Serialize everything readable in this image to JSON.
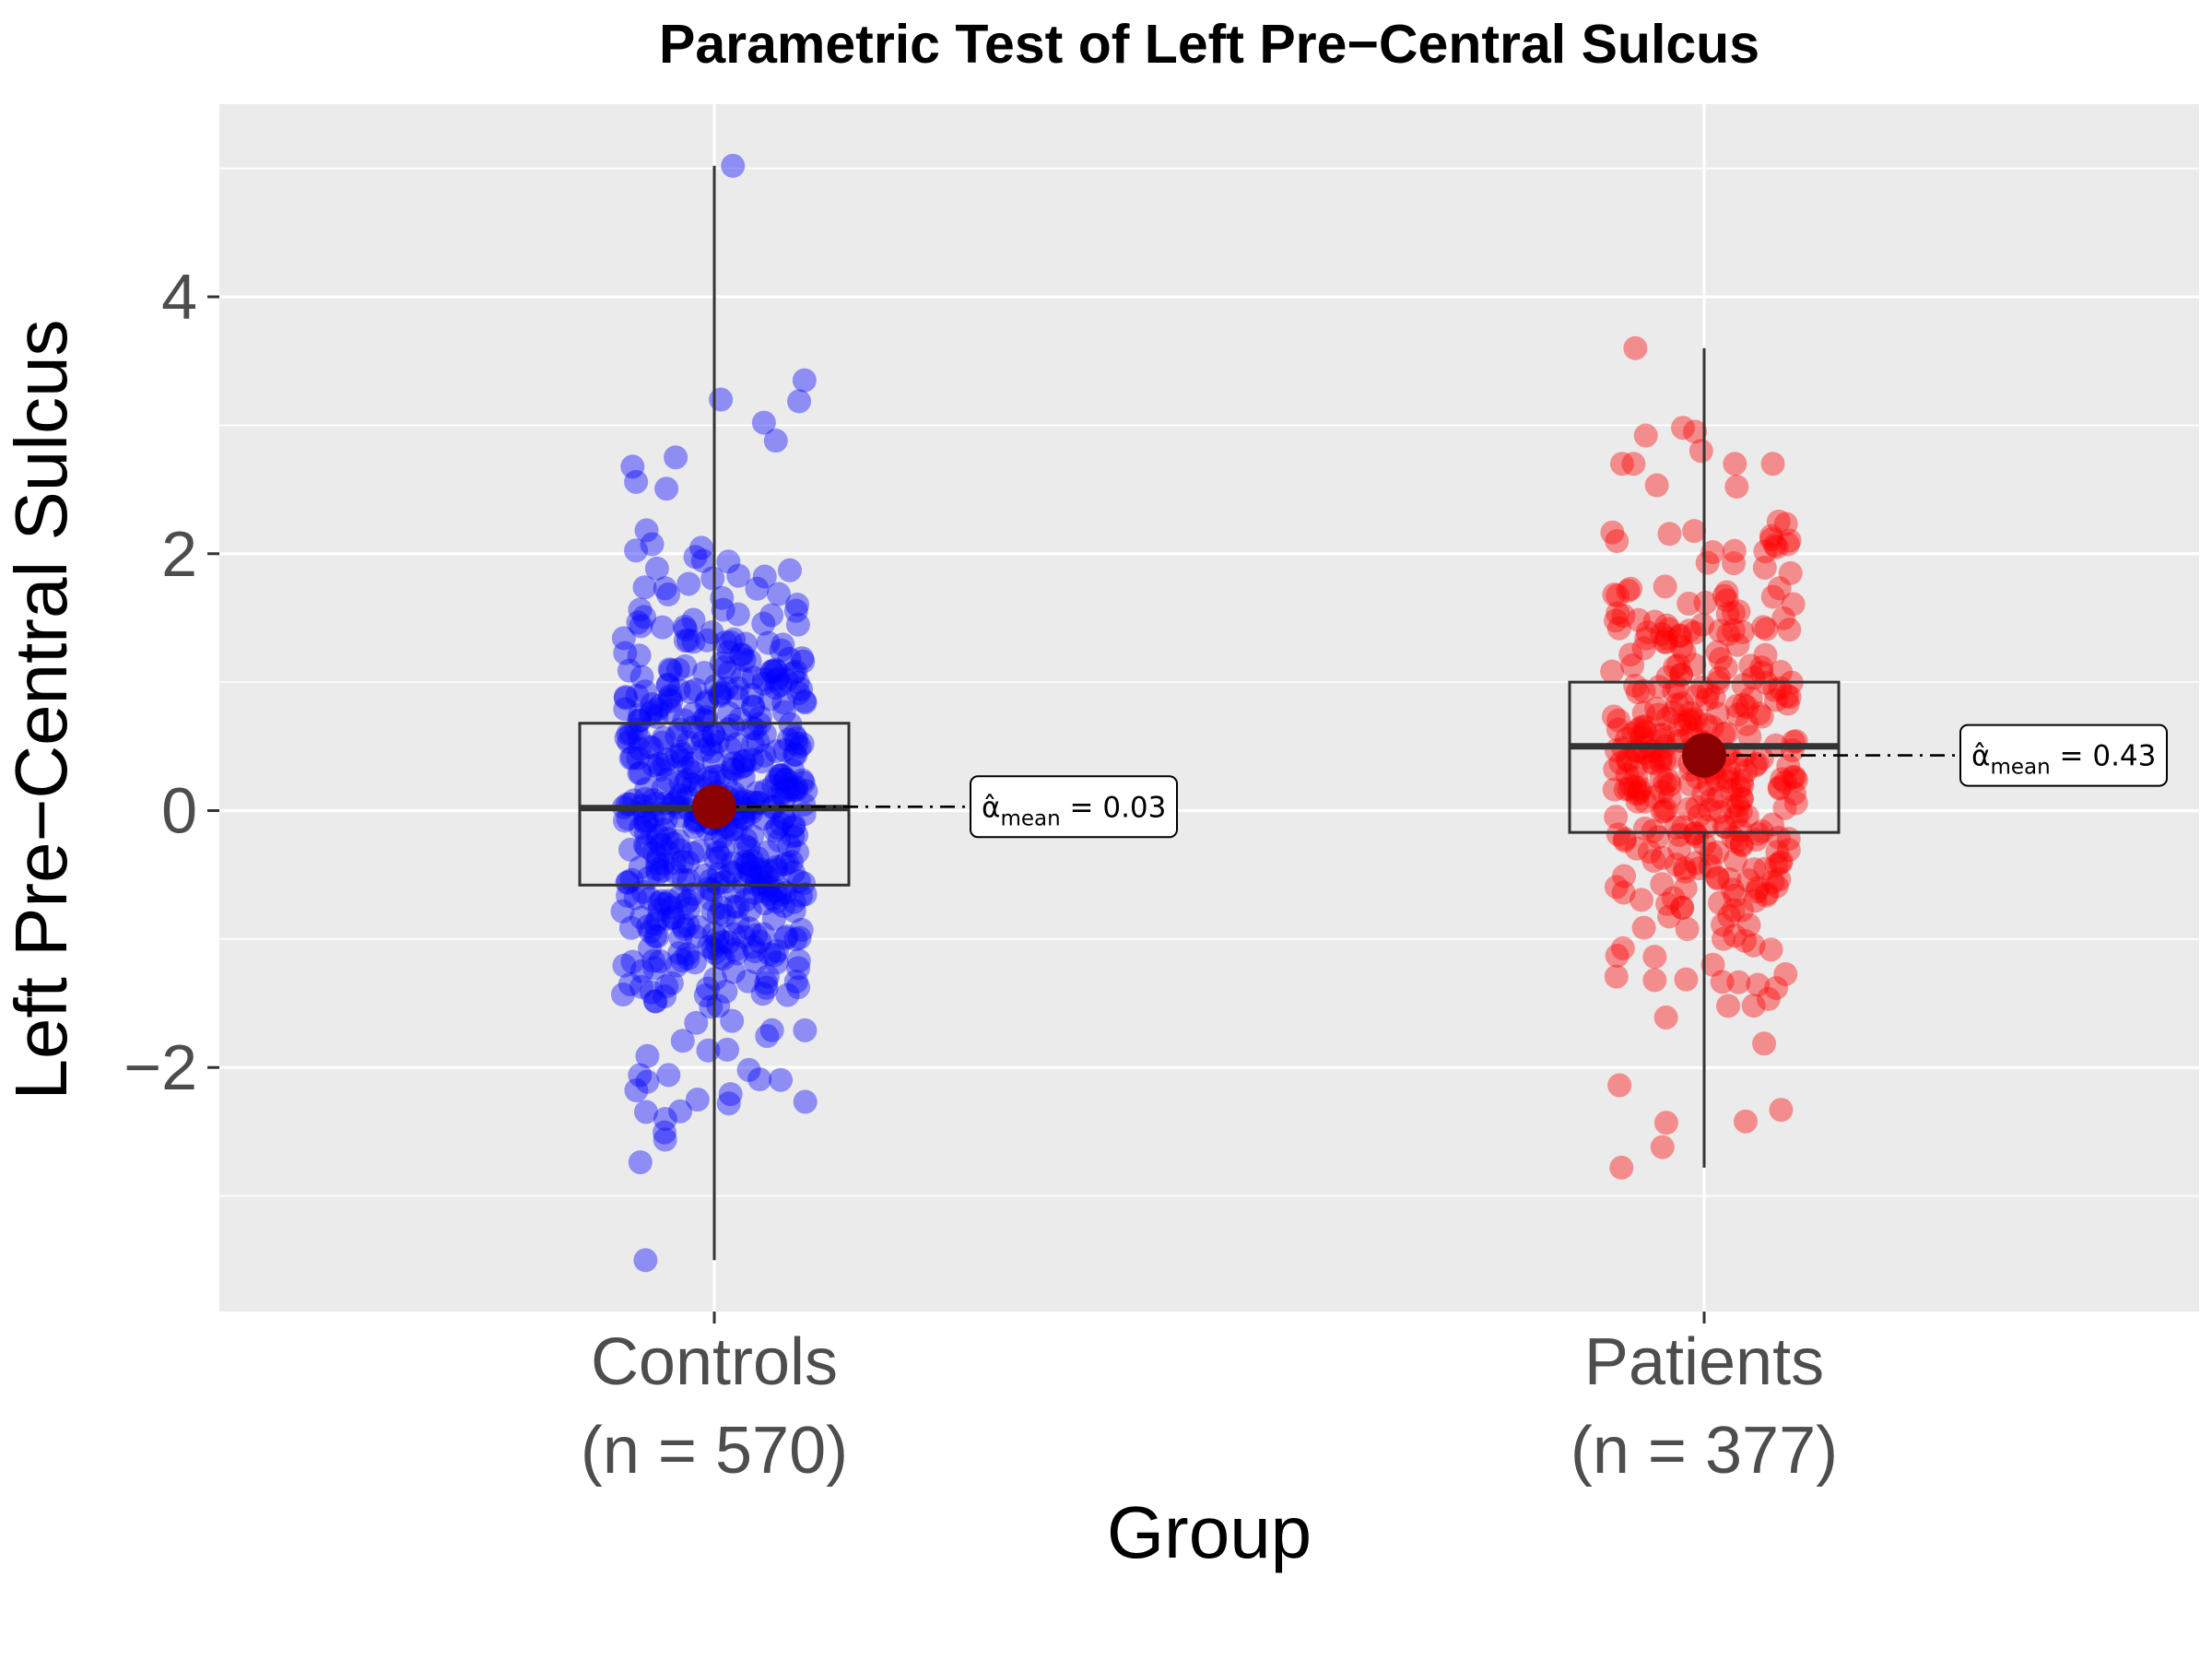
{
  "chart_data": {
    "type": "box-scatter",
    "title": "Parametric Test of Left Pre−Central Sulcus",
    "xlabel": "Group",
    "ylabel": "Left Pre−Central Sulcus",
    "ylim": [
      -3.9,
      5.5
    ],
    "yticks": [
      -2,
      0,
      2,
      4
    ],
    "ytick_labels": [
      "−2",
      "0",
      "2",
      "4"
    ],
    "grid": true,
    "colors": {
      "panel_bg": "#ebebeb",
      "grid": "#ffffff",
      "mean_point": "#8b0000",
      "box": "#333333"
    },
    "groups": [
      {
        "name": "Controls",
        "n_label": "(n = 570)",
        "n": 570,
        "color": "#0000ff",
        "box": {
          "min": -3.5,
          "q1": -0.58,
          "median": 0.02,
          "q3": 0.68,
          "max": 5.02
        },
        "mean": 0.03,
        "mean_label": "0.03",
        "jitter_sd": 0.98,
        "outliers": [
          5.02,
          3.35,
          3.2,
          3.02,
          2.88,
          2.75,
          -2.25,
          -2.28,
          -3.5
        ]
      },
      {
        "name": "Patients",
        "n_label": "(n = 377)",
        "n": 377,
        "color": "#ff0000",
        "box": {
          "min": -2.78,
          "q1": -0.17,
          "median": 0.5,
          "q3": 1.0,
          "max": 3.6
        },
        "mean": 0.43,
        "mean_label": "0.43",
        "jitter_sd": 0.95,
        "outliers": [
          3.6,
          2.98,
          2.95,
          2.92,
          2.8,
          -2.42,
          -2.62,
          -2.78
        ]
      }
    ],
    "annotation": {
      "symbol": "α̂",
      "subscript": "mean",
      "equals": "="
    }
  }
}
